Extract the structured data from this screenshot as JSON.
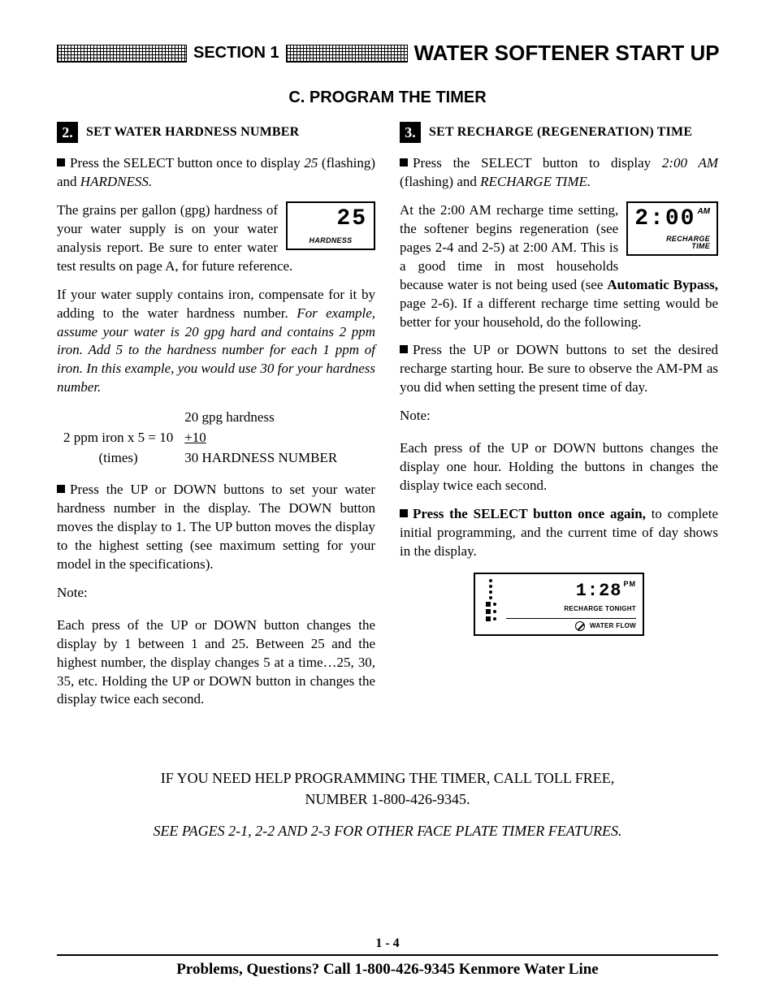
{
  "header": {
    "section_label": "SECTION 1",
    "main_title": "WATER SOFTENER START UP",
    "subheading": "C. PROGRAM THE TIMER"
  },
  "left": {
    "step_num": "2.",
    "step_title": "SET WATER HARDNESS NUMBER",
    "p1_a": "Press the SELECT button once to display ",
    "p1_b": "25",
    "p1_c": " (flashing) and ",
    "p1_d": "HARDNESS.",
    "screen": {
      "value": "25",
      "label": "HARDNESS"
    },
    "p2": "The grains per gallon (gpg) hardness of your water supply is on your water analysis report. Be sure to enter water test results on page A, for future reference.",
    "p3_a": "If your water supply contains iron, compensate for it by adding to the water hardness number. ",
    "p3_b": "For example, assume your water is 20 gpg hard and contains 2 ppm iron. Add 5 to the hardness number for each 1 ppm of iron. In this example, you would use 30 for your hardness number.",
    "calc": {
      "r1c2": "20 gpg hardness",
      "r2c1": "2 ppm iron x 5 = 10",
      "r2c2": "+10",
      "r3c1": "(times)",
      "r3c2": "30 HARDNESS NUMBER"
    },
    "p4": "Press the UP or DOWN buttons to set your water hardness number in the display. The DOWN button moves the display to 1. The UP button moves the display to the highest setting (see maximum setting for your model in the specifications).",
    "note_label": "Note:",
    "p5": "Each press of the UP or DOWN button changes the display by 1 between 1 and 25. Between 25 and the highest number, the display changes 5 at a time…25, 30, 35, etc. Holding the UP or DOWN button in changes the display twice each second."
  },
  "right": {
    "step_num": "3.",
    "step_title": "SET RECHARGE (REGENERATION) TIME",
    "p1_a": "Press the SELECT button to display ",
    "p1_b": "2:00 AM",
    "p1_c": " (flashing) and ",
    "p1_d": "RECHARGE TIME.",
    "screen": {
      "value": "2:00",
      "ampm": "AM",
      "label1": "RECHARGE",
      "label2": "TIME"
    },
    "p2_a": "At the 2:00 AM recharge time setting, the softener begins regeneration (see pages 2-4 and 2-5) at 2:00 AM. This is a good time in most households because water is not being used (see ",
    "p2_b": "Automatic Bypass,",
    "p2_c": " page 2-6). If a different recharge time setting would be better for your household, do the following.",
    "p3": "Press the UP or DOWN buttons to set the desired recharge starting hour. Be sure to observe the AM-PM as you did when setting the present time of day.",
    "note_label": "Note:",
    "p4": "Each press of the UP or DOWN buttons changes the display one hour. Holding the buttons in changes the display twice each second.",
    "p5_a": "Press the SELECT button once again,",
    "p5_b": " to complete initial programming, and the current time of day shows in the display.",
    "panel": {
      "time": "1:28",
      "ampm": "PM",
      "sub": "RECHARGE TONIGHT",
      "bottom": "WATER FLOW"
    }
  },
  "help": {
    "line1": "IF YOU NEED HELP PROGRAMMING THE TIMER, CALL TOLL FREE,",
    "line2": "NUMBER 1-800-426-9345.",
    "see": "SEE PAGES 2-1, 2-2 AND 2-3 FOR OTHER FACE PLATE TIMER FEATURES."
  },
  "footer": {
    "page_num": "1 - 4",
    "text": "Problems, Questions? Call 1-800-426-9345 Kenmore Water Line"
  }
}
